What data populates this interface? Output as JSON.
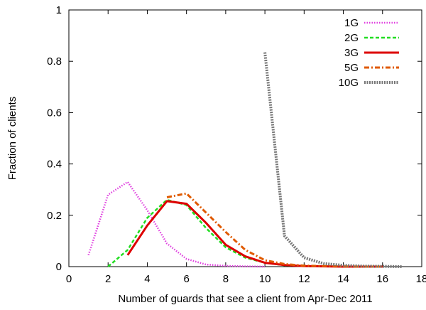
{
  "chart_data": {
    "type": "line",
    "title": "",
    "xlabel": "Number of guards that see a client from Apr-Dec 2011",
    "ylabel": "Fraction of clients",
    "xlim": [
      0,
      18
    ],
    "ylim": [
      0,
      1
    ],
    "xticks": [
      0,
      2,
      4,
      6,
      8,
      10,
      12,
      14,
      16,
      18
    ],
    "yticks": [
      0,
      0.2,
      0.4,
      0.6,
      0.8,
      1
    ],
    "ytick_labels": [
      "0",
      "0.2",
      "0.4",
      "0.6",
      "0.8",
      "1"
    ],
    "grid": false,
    "legend_position": "top-right",
    "series": [
      {
        "name": "1G",
        "color": "#e040e0",
        "style": "dotted",
        "x": [
          1,
          2,
          3,
          4,
          5,
          6,
          7,
          8,
          9,
          10
        ],
        "y": [
          0.045,
          0.28,
          0.33,
          0.22,
          0.09,
          0.03,
          0.008,
          0.003,
          0.001,
          0.0
        ]
      },
      {
        "name": "2G",
        "color": "#22dd22",
        "style": "dashed",
        "x": [
          2,
          3,
          4,
          5,
          6,
          7,
          8,
          9,
          10,
          11,
          12,
          13,
          14,
          15,
          16
        ],
        "y": [
          0.0,
          0.065,
          0.19,
          0.26,
          0.24,
          0.15,
          0.075,
          0.035,
          0.015,
          0.005,
          0.002,
          0.001,
          0.0,
          0.0,
          0.0
        ]
      },
      {
        "name": "3G",
        "color": "#dd0000",
        "style": "solid",
        "x": [
          3,
          4,
          5,
          6,
          7,
          8,
          9,
          10,
          11,
          12,
          13,
          14,
          15,
          16
        ],
        "y": [
          0.045,
          0.16,
          0.255,
          0.245,
          0.17,
          0.085,
          0.04,
          0.015,
          0.006,
          0.002,
          0.001,
          0.0,
          0.0,
          0.0
        ]
      },
      {
        "name": "5G",
        "color": "#e05a00",
        "style": "dashdot",
        "x": [
          5,
          6,
          7,
          8,
          9,
          10,
          11,
          12,
          13,
          14,
          15,
          16
        ],
        "y": [
          0.27,
          0.285,
          0.21,
          0.135,
          0.065,
          0.025,
          0.01,
          0.004,
          0.002,
          0.001,
          0.0,
          0.0
        ]
      },
      {
        "name": "10G",
        "color": "#777777",
        "style": "dense-dotted",
        "x": [
          10,
          11,
          12,
          13,
          14,
          15,
          16,
          17
        ],
        "y": [
          0.835,
          0.12,
          0.035,
          0.012,
          0.005,
          0.002,
          0.001,
          0.0
        ]
      }
    ]
  }
}
